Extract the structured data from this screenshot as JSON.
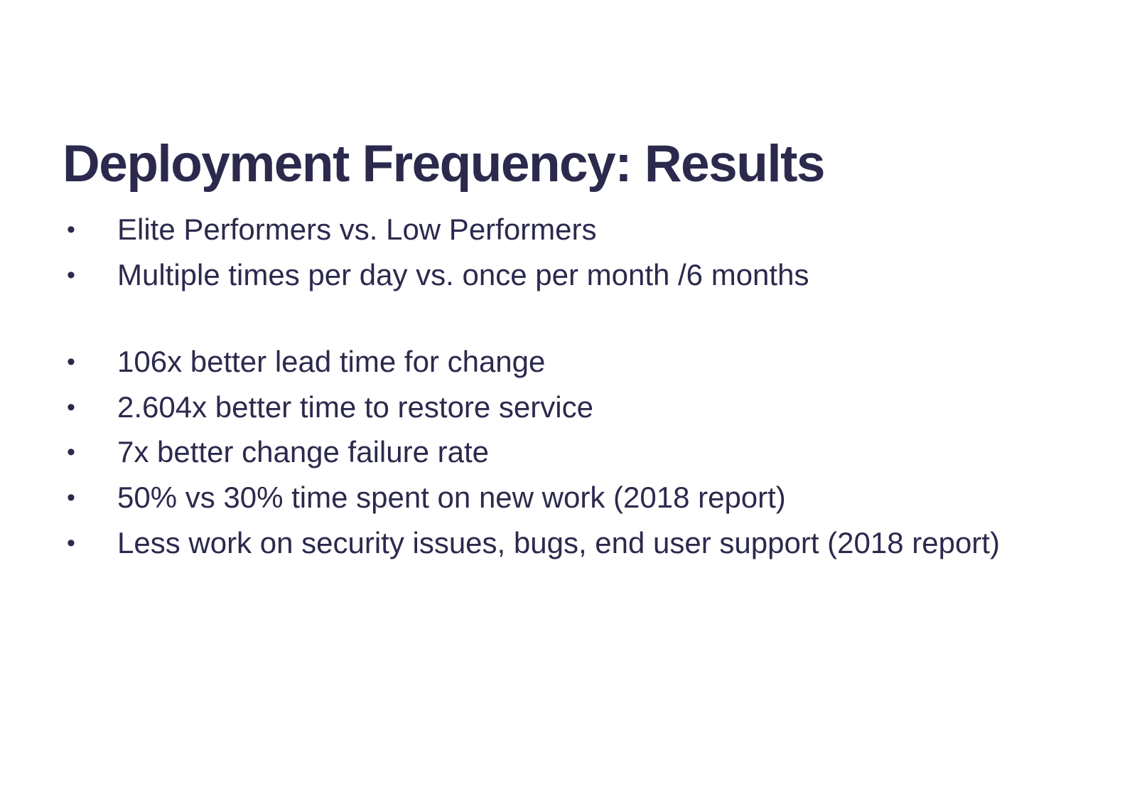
{
  "slide": {
    "title": "Deployment Frequency: Results",
    "text_color": "#2b2a4d",
    "background_color": "#ffffff",
    "bullet_marker": "•",
    "bullet_groups": [
      {
        "items": [
          "Elite Performers vs. Low Performers",
          "Multiple times per day vs. once per month /6 months"
        ]
      },
      {
        "items": [
          "106x better lead time for change",
          "2.604x better time to restore service",
          "7x better change failure rate",
          "50% vs 30% time spent on new work (2018 report)",
          "Less work on security issues, bugs, end user support (2018 report)"
        ]
      }
    ]
  }
}
